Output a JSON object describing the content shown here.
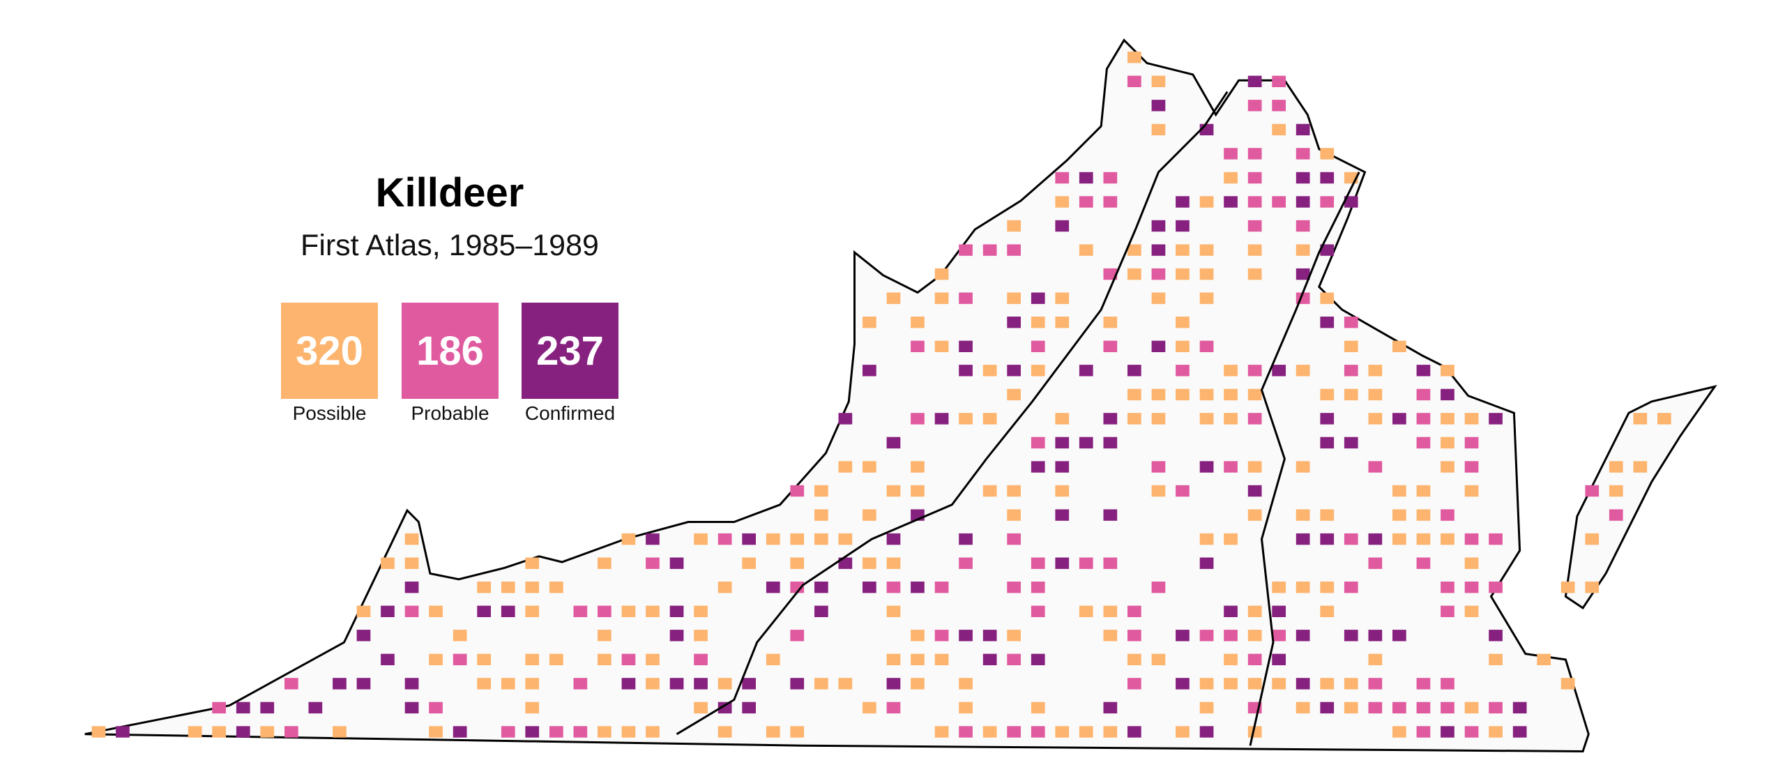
{
  "title": "Killdeer",
  "subtitle": "First Atlas, 1985–1989",
  "legend": [
    {
      "label": "Possible",
      "count": 320,
      "color": "#fdb46e"
    },
    {
      "label": "Probable",
      "count": 186,
      "color": "#e05a9f"
    },
    {
      "label": "Confirmed",
      "count": 237,
      "color": "#87217f"
    }
  ]
}
